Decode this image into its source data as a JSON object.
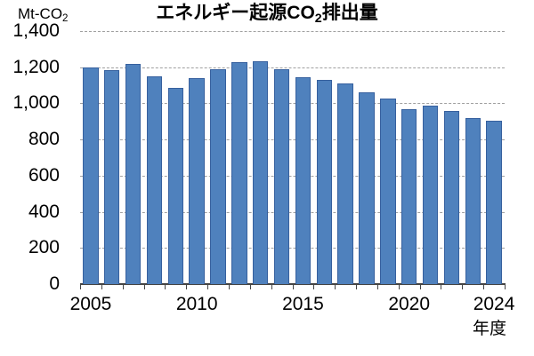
{
  "title": {
    "prefix": "エネルギー起源CO",
    "sub": "2",
    "suffix": "排出量"
  },
  "y_axis": {
    "unit_prefix": "Mt-CO",
    "unit_sub": "2",
    "tick_labels": [
      "1,400",
      "1,200",
      "1,000",
      "800",
      "600",
      "400",
      "200",
      "0"
    ]
  },
  "x_axis": {
    "label": "年度",
    "shown_tick_labels": [
      "2005",
      "2010",
      "2015",
      "2020",
      "2024"
    ]
  },
  "chart_data": {
    "type": "bar",
    "title": "エネルギー起源CO2排出量",
    "ylabel": "Mt-CO2",
    "xlabel": "年度",
    "x": [
      2005,
      2006,
      2007,
      2008,
      2009,
      2010,
      2011,
      2012,
      2013,
      2014,
      2015,
      2016,
      2017,
      2018,
      2019,
      2020,
      2021,
      2022,
      2023,
      2024
    ],
    "values": [
      1201,
      1184,
      1218,
      1151,
      1086,
      1138,
      1189,
      1227,
      1235,
      1189,
      1147,
      1128,
      1110,
      1061,
      1029,
      967,
      988,
      959,
      918,
      905
    ],
    "ylim": [
      0,
      1400
    ],
    "ytick_interval": 200,
    "grid": "horizontal-dashed",
    "legend": "none",
    "bar_fill": "#4f81bd",
    "bar_border": "#36609e",
    "gridline_color": "#a0a0a0",
    "axis_color": "#444444",
    "text_color": "#000000"
  }
}
